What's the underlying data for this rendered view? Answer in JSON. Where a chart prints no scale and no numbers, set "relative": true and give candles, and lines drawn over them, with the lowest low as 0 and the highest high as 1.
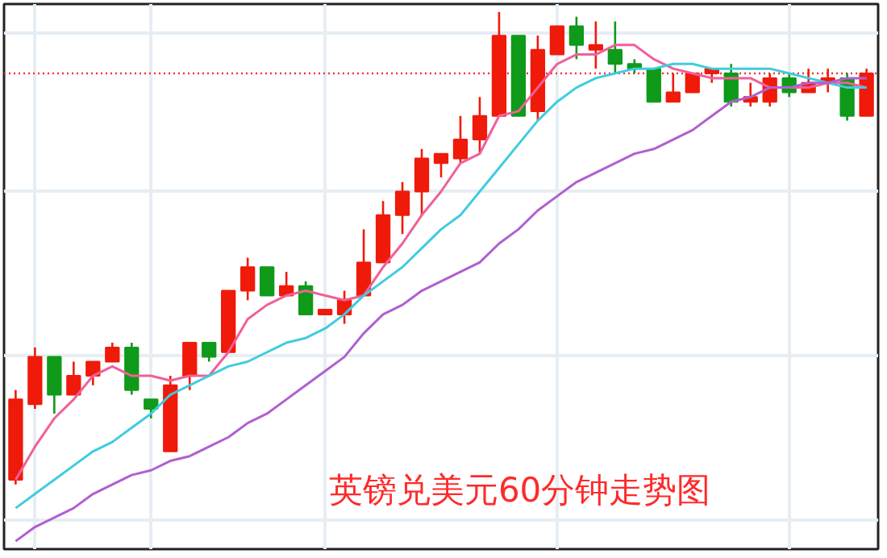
{
  "chart_data": {
    "type": "candlestick",
    "title": "英镑兑美元60分钟走势图",
    "relative": true,
    "grid": true,
    "categories": [
      null,
      null,
      null,
      null,
      null,
      null,
      null,
      null,
      null,
      null,
      null,
      null,
      null,
      null,
      null,
      null,
      null,
      null,
      null,
      null,
      null,
      null,
      null,
      null,
      null,
      null,
      null,
      null,
      null,
      null,
      null,
      null,
      null,
      null,
      null,
      null,
      null,
      null,
      null,
      null,
      null,
      null,
      null,
      null,
      null
    ],
    "ohlc": [
      [
        0.01,
        0.2,
        0,
        0.18
      ],
      [
        0.17,
        0.29,
        0.16,
        0.27
      ],
      [
        0.27,
        0.27,
        0.15,
        0.19
      ],
      [
        0.19,
        0.26,
        0.19,
        0.23
      ],
      [
        0.23,
        0.26,
        0.21,
        0.26
      ],
      [
        0.26,
        0.3,
        0.26,
        0.29
      ],
      [
        0.29,
        0.3,
        0.19,
        0.2
      ],
      [
        0.18,
        0.18,
        0.14,
        0.16
      ],
      [
        0.07,
        0.23,
        0.07,
        0.21
      ],
      [
        0.23,
        0.3,
        0.2,
        0.3
      ],
      [
        0.3,
        0.3,
        0.26,
        0.27
      ],
      [
        0.28,
        0.41,
        0.28,
        0.41
      ],
      [
        0.41,
        0.48,
        0.39,
        0.46
      ],
      [
        0.46,
        0.46,
        0.4,
        0.4
      ],
      [
        0.4,
        0.45,
        0.4,
        0.42
      ],
      [
        0.42,
        0.43,
        0.36,
        0.36
      ],
      [
        0.36,
        0.37,
        0.36,
        0.37
      ],
      [
        0.36,
        0.41,
        0.34,
        0.39
      ],
      [
        0.4,
        0.54,
        0.4,
        0.47
      ],
      [
        0.47,
        0.6,
        0.47,
        0.57
      ],
      [
        0.57,
        0.64,
        0.53,
        0.62
      ],
      [
        0.62,
        0.71,
        0.57,
        0.69
      ],
      [
        0.68,
        0.7,
        0.65,
        0.7
      ],
      [
        0.69,
        0.78,
        0.68,
        0.73
      ],
      [
        0.73,
        0.82,
        0.7,
        0.78
      ],
      [
        0.78,
        1,
        0.78,
        0.95
      ],
      [
        0.95,
        0.95,
        0.78,
        0.78
      ],
      [
        0.79,
        0.95,
        0.77,
        0.92
      ],
      [
        0.91,
        0.97,
        0.91,
        0.97
      ],
      [
        0.97,
        0.99,
        0.9,
        0.93
      ],
      [
        0.92,
        0.98,
        0.88,
        0.93
      ],
      [
        0.92,
        0.98,
        0.87,
        0.89
      ],
      [
        0.89,
        0.9,
        0.87,
        0.88
      ],
      [
        0.88,
        0.88,
        0.81,
        0.81
      ],
      [
        0.81,
        0.87,
        0.81,
        0.83
      ],
      [
        0.83,
        0.87,
        0.83,
        0.87
      ],
      [
        0.87,
        0.88,
        0.85,
        0.88
      ],
      [
        0.87,
        0.89,
        0.8,
        0.81
      ],
      [
        0.81,
        0.85,
        0.8,
        0.82
      ],
      [
        0.81,
        0.87,
        0.8,
        0.86
      ],
      [
        0.86,
        0.87,
        0.82,
        0.83
      ],
      [
        0.83,
        0.88,
        0.83,
        0.85
      ],
      [
        0.85,
        0.88,
        0.83,
        0.86
      ],
      [
        0.86,
        0.87,
        0.77,
        0.78
      ],
      [
        0.78,
        0.88,
        0.78,
        0.87
      ]
    ],
    "colors": [
      "#f01a0a",
      "#f01a0a",
      "#0f9a1a",
      "#f01a0a",
      "#f01a0a",
      "#f01a0a",
      "#0f9a1a",
      "#0f9a1a",
      "#f01a0a",
      "#f01a0a",
      "#0f9a1a",
      "#f01a0a",
      "#f01a0a",
      "#0f9a1a",
      "#f01a0a",
      "#0f9a1a",
      "#f01a0a",
      "#f01a0a",
      "#f01a0a",
      "#f01a0a",
      "#f01a0a",
      "#f01a0a",
      "#f01a0a",
      "#f01a0a",
      "#f01a0a",
      "#f01a0a",
      "#0f9a1a",
      "#f01a0a",
      "#f01a0a",
      "#0f9a1a",
      "#f01a0a",
      "#0f9a1a",
      "#0f9a1a",
      "#0f9a1a",
      "#f01a0a",
      "#f01a0a",
      "#f01a0a",
      "#0f9a1a",
      "#f01a0a",
      "#f01a0a",
      "#0f9a1a",
      "#f01a0a",
      "#f01a0a",
      "#0f9a1a",
      "#f01a0a"
    ],
    "series": [
      {
        "type": "line",
        "color": "#f0609a",
        "values": [
          0.01,
          0.08,
          0.14,
          0.18,
          0.23,
          0.25,
          0.23,
          0.23,
          0.22,
          0.23,
          0.23,
          0.28,
          0.35,
          0.38,
          0.4,
          0.41,
          0.4,
          0.39,
          0.4,
          0.46,
          0.51,
          0.57,
          0.62,
          0.68,
          0.7,
          0.78,
          0.79,
          0.84,
          0.89,
          0.91,
          0.91,
          0.93,
          0.93,
          0.9,
          0.88,
          0.87,
          0.86,
          0.86,
          0.86,
          0.84,
          0.84,
          0.84,
          0.85,
          0.85,
          0.84
        ]
      },
      {
        "type": "line",
        "color": "#40cce0",
        "values": [
          -0.05,
          -0.02,
          0.01,
          0.04,
          0.07,
          0.09,
          0.12,
          0.15,
          0.19,
          0.21,
          0.23,
          0.25,
          0.26,
          0.28,
          0.3,
          0.31,
          0.33,
          0.36,
          0.4,
          0.43,
          0.46,
          0.5,
          0.54,
          0.57,
          0.62,
          0.67,
          0.72,
          0.77,
          0.81,
          0.84,
          0.86,
          0.87,
          0.88,
          0.88,
          0.89,
          0.89,
          0.88,
          0.88,
          0.88,
          0.88,
          0.87,
          0.86,
          0.85,
          0.84,
          0.84
        ]
      },
      {
        "type": "line",
        "color": "#b060d0",
        "values": [
          -0.12,
          -0.09,
          -0.07,
          -0.05,
          -0.02,
          0,
          0.02,
          0.03,
          0.05,
          0.06,
          0.08,
          0.1,
          0.13,
          0.15,
          0.18,
          0.21,
          0.24,
          0.27,
          0.32,
          0.36,
          0.38,
          0.41,
          0.43,
          0.45,
          0.47,
          0.51,
          0.54,
          0.58,
          0.61,
          0.64,
          0.66,
          0.68,
          0.7,
          0.71,
          0.73,
          0.75,
          0.78,
          0.81,
          0.82,
          0.84,
          0.84,
          0.85,
          0.85,
          0.86,
          0.86
        ]
      }
    ],
    "ref_lines": [
      {
        "axis": "y",
        "value": 0.87,
        "color": "#ff3030",
        "line_style": "dotted"
      }
    ]
  }
}
